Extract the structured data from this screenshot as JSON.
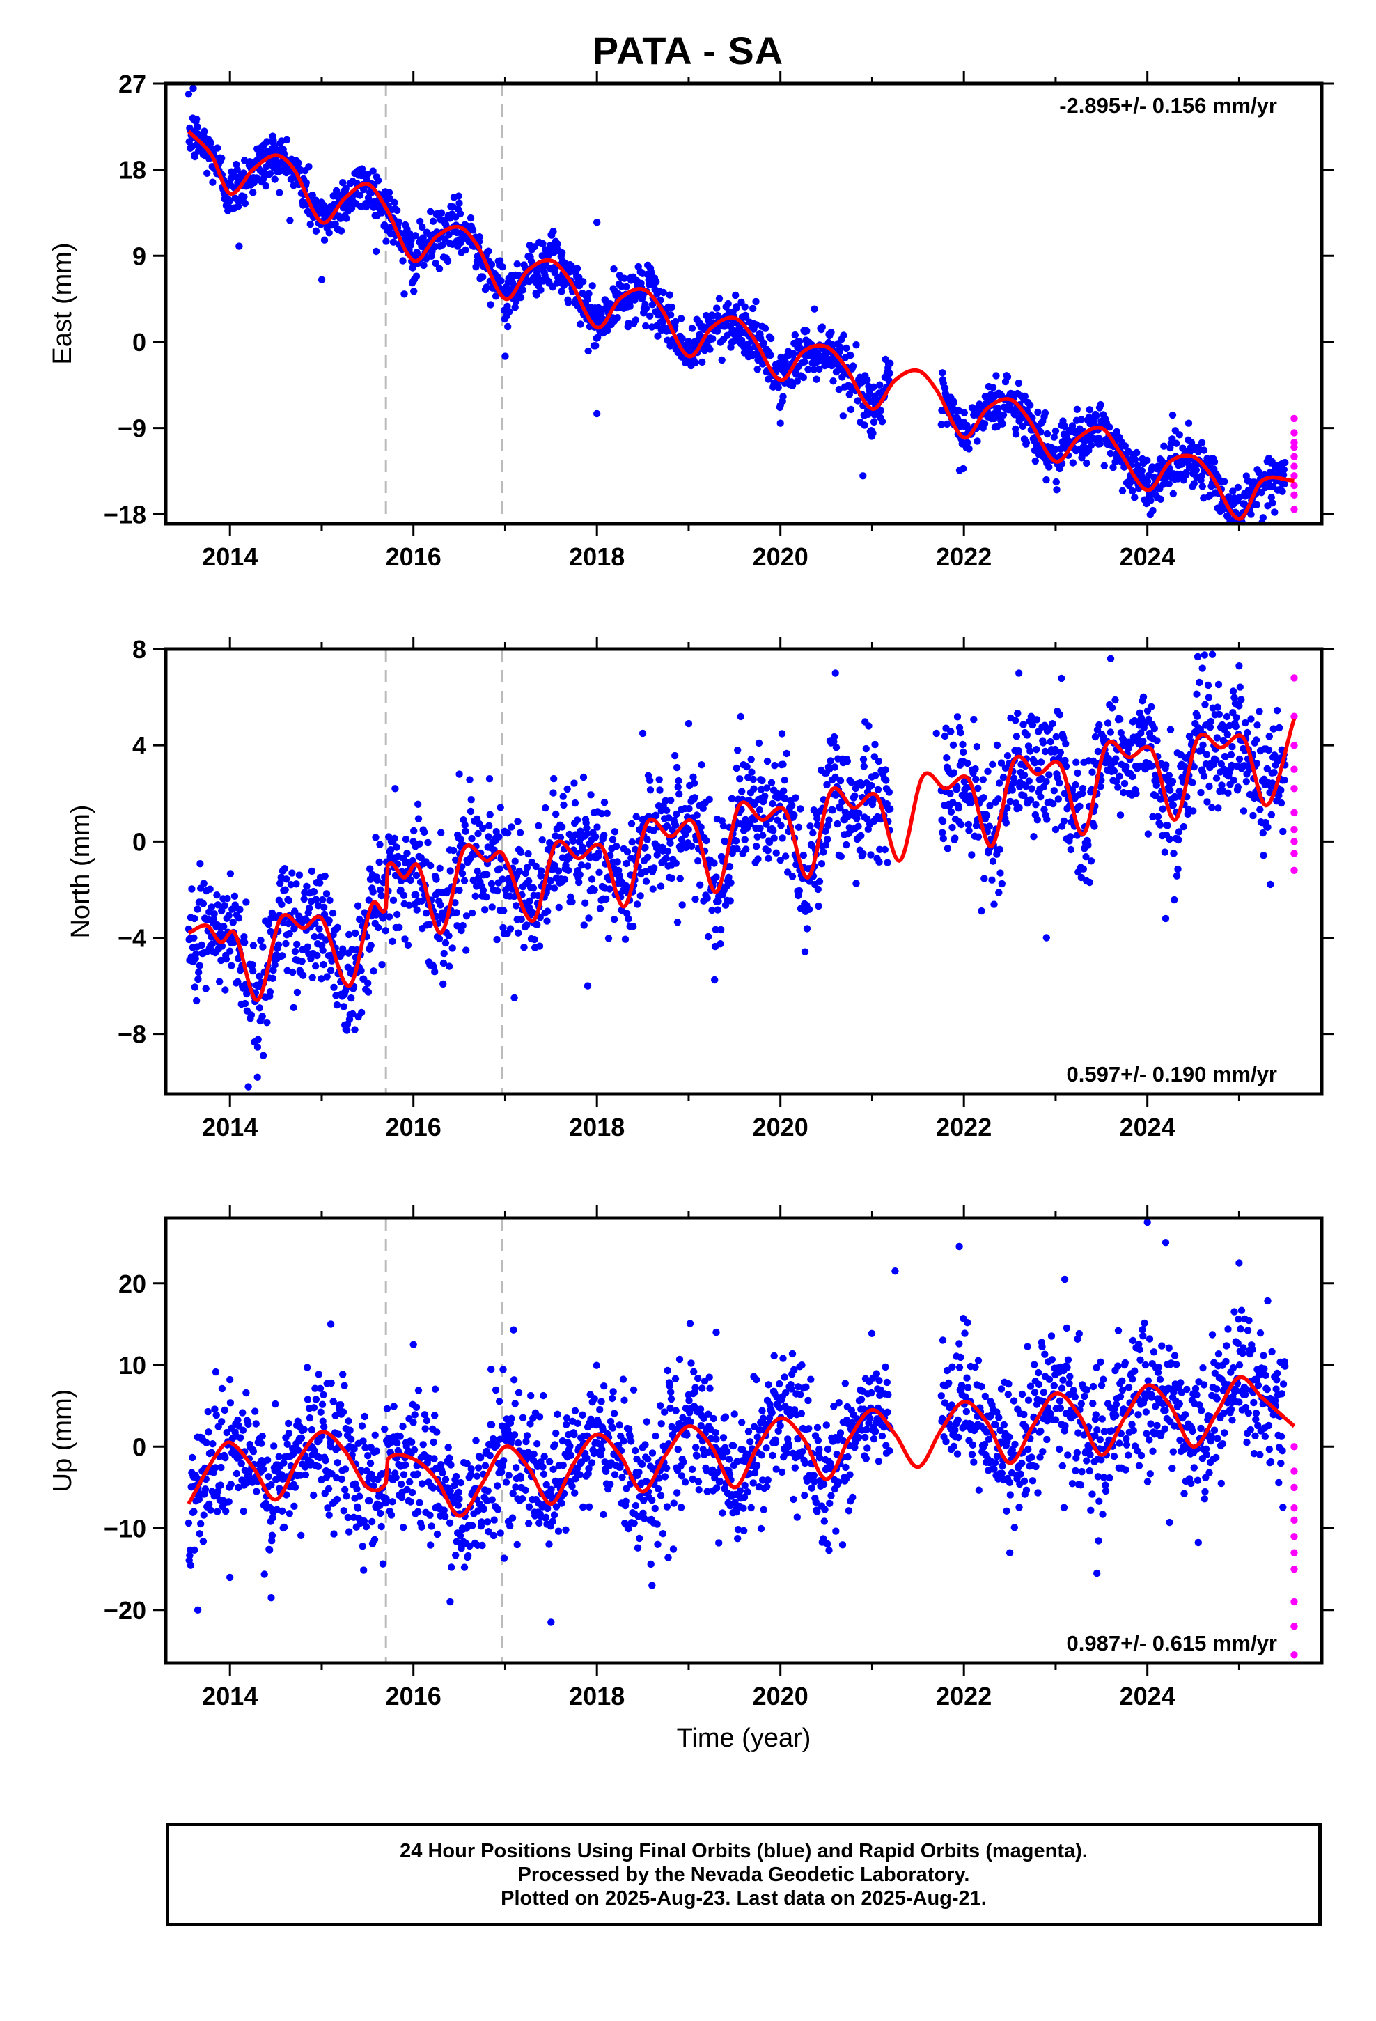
{
  "title": "PATA - SA",
  "colors": {
    "final": "#0000ff",
    "rapid": "#ff00ff",
    "model": "#ff0000",
    "break": "#bbbbbb"
  },
  "xaxis": {
    "label": "Time (year)",
    "range": [
      2013.3,
      2025.9
    ],
    "ticks": [
      2014,
      2016,
      2018,
      2020,
      2022,
      2024
    ],
    "tick_labels": [
      "2014",
      "2016",
      "2018",
      "2020",
      "2022",
      "2024"
    ]
  },
  "breaks": [
    2015.7,
    2016.97
  ],
  "chart_data": [
    {
      "type": "scatter",
      "component": "east",
      "ylabel": "East (mm)",
      "ylim": [
        -19,
        27
      ],
      "yticks": [
        27,
        18,
        9,
        0,
        -9,
        -18
      ],
      "ytick_labels": [
        "27",
        "18",
        "9",
        "0",
        "-9",
        "-18"
      ],
      "rate_label": "-2.895+/- 0.156 mm/yr",
      "rate_position": "top-right",
      "model": {
        "x": [
          2013.55,
          2013.8,
          2014.0,
          2014.25,
          2014.5,
          2014.7,
          2015.0,
          2015.25,
          2015.5,
          2015.7,
          2016.0,
          2016.25,
          2016.5,
          2016.7,
          2017.0,
          2017.25,
          2017.5,
          2017.7,
          2018.0,
          2018.25,
          2018.5,
          2018.7,
          2019.0,
          2019.25,
          2019.5,
          2019.7,
          2020.0,
          2020.25,
          2020.5,
          2020.7,
          2021.0,
          2021.25,
          2021.5,
          2021.7,
          2022.0,
          2022.25,
          2022.5,
          2022.7,
          2023.0,
          2023.25,
          2023.5,
          2023.7,
          2024.0,
          2024.25,
          2024.5,
          2024.7,
          2025.0,
          2025.25,
          2025.6
        ],
        "y": [
          22,
          19.5,
          15.5,
          18,
          19.5,
          18,
          12.5,
          15,
          16.5,
          14,
          8.5,
          11,
          12,
          10,
          4.5,
          7.5,
          8.5,
          6.5,
          1.5,
          4.5,
          5.5,
          3.5,
          -1.5,
          1.5,
          2.5,
          0.5,
          -4,
          -1,
          -0.5,
          -2.5,
          -7,
          -4,
          -3,
          -5,
          -10,
          -7,
          -6,
          -8,
          -12.5,
          -10,
          -9,
          -11.5,
          -15.5,
          -12.5,
          -12,
          -14,
          -18.5,
          -14.5,
          -14.5
        ]
      },
      "final_orbits": {
        "start": 2013.55,
        "end": 2025.5,
        "gap": [
          2021.2,
          2021.75
        ],
        "outliers": [
          [
            2013.6,
            26.5
          ],
          [
            2014.1,
            10
          ],
          [
            2015.0,
            6.5
          ],
          [
            2015.9,
            5
          ],
          [
            2017.0,
            -1.5
          ],
          [
            2017.55,
            10.5
          ],
          [
            2018.0,
            -7.5
          ],
          [
            2018.0,
            12.5
          ],
          [
            2019.7,
            3.5
          ],
          [
            2020.0,
            -8.5
          ],
          [
            2020.9,
            -14
          ],
          [
            2023.3,
            -11
          ],
          [
            2023.8,
            -15
          ],
          [
            2024.45,
            -8.5
          ],
          [
            2024.95,
            -18.5
          ]
        ]
      },
      "rapid_orbits": {
        "x": 2025.6,
        "values": [
          -8,
          -9.5,
          -10.5,
          -11,
          -12,
          -13,
          -14,
          -15,
          -16,
          -17.5
        ]
      }
    },
    {
      "type": "scatter",
      "component": "north",
      "ylabel": "North (mm)",
      "ylim": [
        -10.5,
        8
      ],
      "yticks": [
        8,
        4,
        0,
        -4,
        -8
      ],
      "ytick_labels": [
        "8",
        "4",
        "0",
        "-4",
        "-8"
      ],
      "rate_label": "0.597+/- 0.190 mm/yr",
      "rate_position": "bottom-right",
      "model": {
        "x": [
          2013.55,
          2013.75,
          2013.9,
          2014.05,
          2014.3,
          2014.55,
          2014.8,
          2015.0,
          2015.3,
          2015.55,
          2015.7,
          2015.72,
          2015.9,
          2016.05,
          2016.3,
          2016.55,
          2016.8,
          2016.97,
          2017.3,
          2017.55,
          2017.8,
          2018.05,
          2018.3,
          2018.55,
          2018.8,
          2019.05,
          2019.3,
          2019.55,
          2019.8,
          2020.05,
          2020.3,
          2020.55,
          2020.8,
          2021.05,
          2021.3,
          2021.55,
          2021.8,
          2022.05,
          2022.3,
          2022.55,
          2022.8,
          2023.05,
          2023.3,
          2023.55,
          2023.8,
          2024.05,
          2024.3,
          2024.55,
          2024.8,
          2025.05,
          2025.3,
          2025.6
        ],
        "y": [
          -3.8,
          -3.5,
          -4.2,
          -3.8,
          -6.6,
          -3.2,
          -3.6,
          -3.2,
          -6,
          -2.6,
          -2.8,
          -1.0,
          -1.5,
          -1.0,
          -3.8,
          -0.3,
          -0.8,
          -0.5,
          -3.3,
          -0.1,
          -0.7,
          -0.2,
          -2.7,
          0.8,
          0.2,
          0.8,
          -2.1,
          1.5,
          0.9,
          1.3,
          -1.5,
          2.1,
          1.4,
          1.9,
          -0.8,
          2.7,
          2.2,
          2.6,
          -0.2,
          3.4,
          2.8,
          3.2,
          0.3,
          4.0,
          3.5,
          3.8,
          0.9,
          4.3,
          3.9,
          4.3,
          1.5,
          5.1
        ]
      },
      "final_orbits": {
        "start": 2013.55,
        "end": 2025.5,
        "gap": [
          2021.2,
          2021.75
        ],
        "outliers": [
          [
            2014.2,
            -10.2
          ],
          [
            2014.3,
            -9.8
          ],
          [
            2015.8,
            2.2
          ],
          [
            2016.5,
            2.8
          ],
          [
            2017.1,
            -6.5
          ],
          [
            2017.9,
            -6.0
          ],
          [
            2018.5,
            4.5
          ],
          [
            2019.0,
            4.9
          ],
          [
            2020.6,
            7.0
          ],
          [
            2021.7,
            4.5
          ],
          [
            2022.6,
            7.0
          ],
          [
            2023.6,
            7.6
          ],
          [
            2024.2,
            -3.2
          ],
          [
            2024.6,
            7.2
          ],
          [
            2025.0,
            7.3
          ],
          [
            2022.9,
            -4.0
          ]
        ]
      },
      "rapid_orbits": {
        "x": 2025.6,
        "values": [
          6.8,
          5.2,
          4.0,
          3.0,
          2.2,
          1.2,
          0.5,
          0.0,
          -0.5,
          -1.2
        ]
      }
    },
    {
      "type": "scatter",
      "component": "up",
      "ylabel": "Up (mm)",
      "ylim": [
        -26.5,
        28
      ],
      "yticks": [
        20,
        10,
        0,
        -10,
        -20
      ],
      "ytick_labels": [
        "20",
        "10",
        "0",
        "-10",
        "-20"
      ],
      "rate_label": "0.987+/- 0.615 mm/yr",
      "rate_position": "bottom-right",
      "model": {
        "x": [
          2013.55,
          2013.85,
          2014.0,
          2014.25,
          2014.5,
          2014.75,
          2015.0,
          2015.25,
          2015.5,
          2015.7,
          2015.72,
          2016.0,
          2016.25,
          2016.5,
          2016.75,
          2017.0,
          2017.25,
          2017.5,
          2017.75,
          2018.0,
          2018.25,
          2018.5,
          2018.75,
          2019.0,
          2019.25,
          2019.5,
          2019.75,
          2020.0,
          2020.25,
          2020.5,
          2020.75,
          2021.0,
          2021.25,
          2021.5,
          2021.75,
          2022.0,
          2022.25,
          2022.5,
          2022.75,
          2023.0,
          2023.25,
          2023.5,
          2023.75,
          2024.0,
          2024.25,
          2024.5,
          2024.75,
          2025.0,
          2025.25,
          2025.6
        ],
        "y": [
          -7,
          -1,
          0.5,
          -2.5,
          -6.5,
          -1.5,
          1.8,
          -0.5,
          -5,
          -4.5,
          -1.5,
          -1.5,
          -4,
          -8.5,
          -4.5,
          0,
          -2.5,
          -7,
          -2,
          1.5,
          -1,
          -5.5,
          -1,
          2.5,
          0,
          -5,
          0,
          3.5,
          1,
          -4,
          1,
          4.5,
          1.5,
          -2.5,
          2,
          5.5,
          3,
          -2,
          2.5,
          6.5,
          4,
          -1,
          3.5,
          7.5,
          5,
          0,
          4,
          8.5,
          6,
          2.5
        ]
      },
      "final_orbits": {
        "start": 2013.55,
        "end": 2025.5,
        "gap": [
          2021.2,
          2021.75
        ],
        "outliers": [
          [
            2013.65,
            -20
          ],
          [
            2014.0,
            -16
          ],
          [
            2014.45,
            -18.5
          ],
          [
            2015.1,
            15
          ],
          [
            2016.0,
            12.5
          ],
          [
            2016.4,
            -19
          ],
          [
            2017.5,
            -21.5
          ],
          [
            2018.6,
            -17
          ],
          [
            2021.25,
            21.5
          ],
          [
            2021.95,
            24.5
          ],
          [
            2022.5,
            -13
          ],
          [
            2023.1,
            20.5
          ],
          [
            2023.45,
            -15.5
          ],
          [
            2024.0,
            27.5
          ],
          [
            2024.2,
            25
          ],
          [
            2025.0,
            22.5
          ],
          [
            2019.3,
            14
          ]
        ]
      },
      "rapid_orbits": {
        "x": 2025.6,
        "values": [
          0,
          -3,
          -5,
          -7.5,
          -9,
          -11,
          -13,
          -15,
          -19,
          -22,
          -25.5
        ]
      }
    }
  ],
  "footer": {
    "line1": "24 Hour Positions Using Final Orbits (blue) and Rapid Orbits (magenta).",
    "line2": "Processed by the Nevada Geodetic Laboratory.",
    "line3": "Plotted on 2025-Aug-23. Last data on 2025-Aug-21."
  }
}
